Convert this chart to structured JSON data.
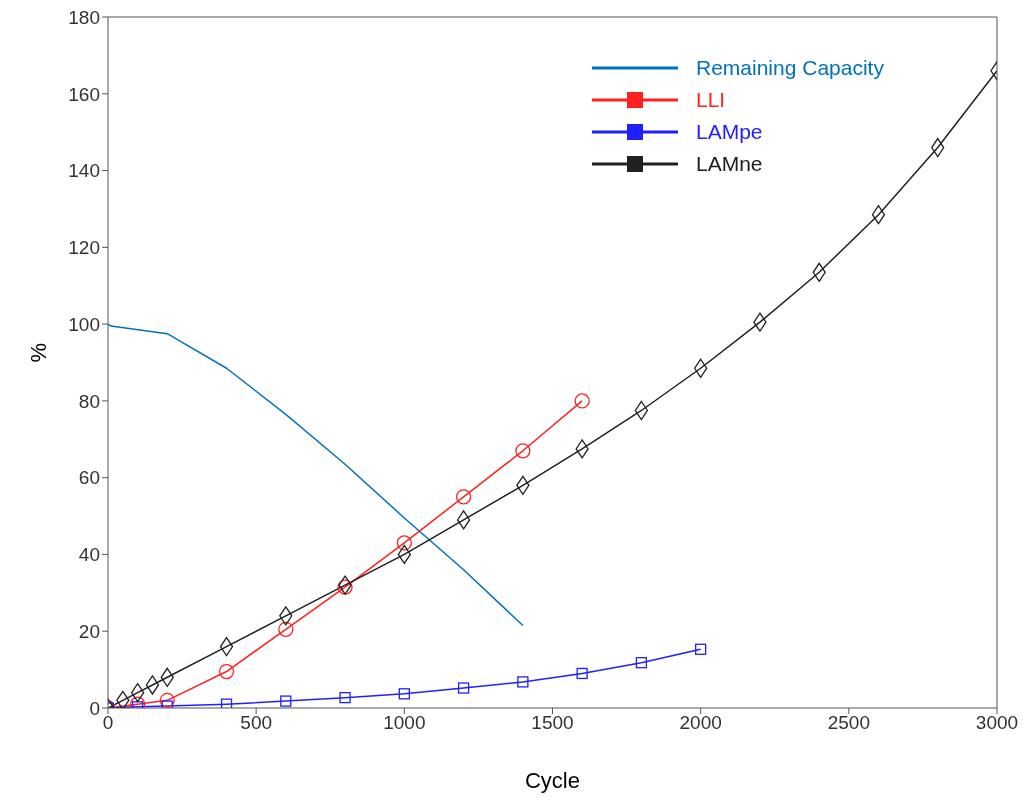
{
  "chart_data": {
    "type": "line",
    "xlabel": "Cycle",
    "ylabel": "%",
    "xlim": [
      0,
      3000
    ],
    "ylim": [
      0,
      180
    ],
    "xticks": [
      0,
      500,
      1000,
      1500,
      2000,
      2500,
      3000
    ],
    "yticks": [
      0,
      20,
      40,
      60,
      80,
      100,
      120,
      140,
      160,
      180
    ],
    "grid": false,
    "legend": "top right",
    "series": [
      {
        "name": "Remaining Capacity",
        "color": "#0072bd",
        "marker": "none",
        "x": [
          0,
          10,
          200,
          400,
          600,
          800,
          1000,
          1200,
          1400
        ],
        "values": [
          100,
          99.5,
          97.5,
          88.5,
          76.5,
          63.5,
          49.5,
          36,
          21.5
        ]
      },
      {
        "name": "LLI",
        "color": "#ff2020",
        "marker": "circle",
        "x": [
          0,
          100,
          200,
          400,
          600,
          800,
          1000,
          1200,
          1400,
          1600
        ],
        "values": [
          0,
          1,
          2,
          9.5,
          20.5,
          31.5,
          43,
          55,
          67,
          80
        ]
      },
      {
        "name": "LAMpe",
        "color": "#2020ff",
        "marker": "square",
        "x": [
          0,
          100,
          200,
          400,
          600,
          800,
          1000,
          1200,
          1400,
          1600,
          1800,
          2000
        ],
        "values": [
          0,
          0.3,
          0.5,
          1,
          1.8,
          2.7,
          3.7,
          5.2,
          6.8,
          9,
          11.8,
          15.3
        ]
      },
      {
        "name": "LAMne",
        "color": "#202020",
        "marker": "diamond",
        "x": [
          0,
          50,
          100,
          150,
          200,
          400,
          600,
          800,
          1000,
          1200,
          1400,
          1600,
          1800,
          2000,
          2200,
          2400,
          2600,
          2800,
          3000
        ],
        "values": [
          0,
          2,
          4,
          6,
          8,
          16,
          24,
          32,
          40,
          49,
          58,
          67.5,
          77.5,
          88.5,
          100.5,
          113.5,
          128.5,
          146,
          166
        ]
      }
    ]
  }
}
